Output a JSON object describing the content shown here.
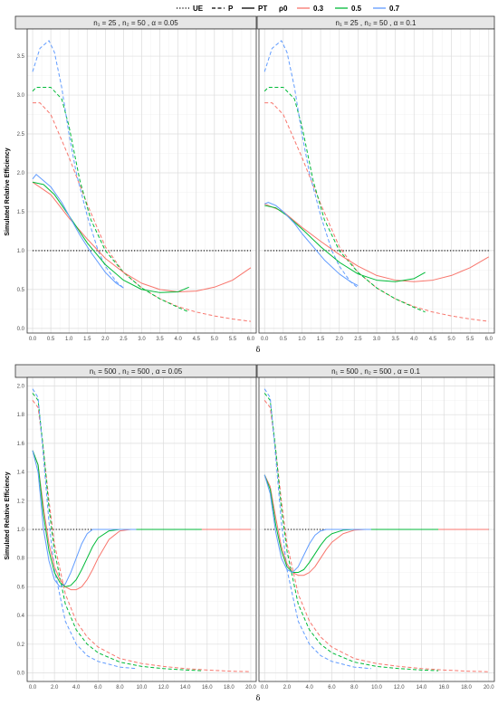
{
  "legend": {
    "linetype_items": [
      {
        "label": "UE",
        "dash": "1.2,2"
      },
      {
        "label": "P",
        "dash": "4,2.5"
      },
      {
        "label": "PT",
        "dash": ""
      }
    ],
    "rho_title": "ρ0",
    "rho_items": [
      {
        "label": "0.3",
        "color": "#F8766D"
      },
      {
        "label": "0.5",
        "color": "#00BA38"
      },
      {
        "label": "0.7",
        "color": "#619CFF"
      }
    ]
  },
  "ylabel": "Simulated Relative Efficiency",
  "xlabel": "δ",
  "chart_data": [
    {
      "type": "line",
      "title": "n₁ = 25 , n₂ = 50 , α = 0.05",
      "xlim": [
        -0.15,
        6.15
      ],
      "ylim": [
        -0.06,
        3.85
      ],
      "xticks": [
        0.0,
        0.5,
        1.0,
        1.5,
        2.0,
        2.5,
        3.0,
        3.5,
        4.0,
        4.5,
        5.0,
        5.5,
        6.0
      ],
      "xtick_labels": [
        "0.0",
        "0.5",
        "1.0",
        "1.5",
        "2.0",
        "2.5",
        "3.0",
        "3.5",
        "4.0",
        "4.5",
        "5.0",
        "5.5",
        "6.0"
      ],
      "yticks": [
        0.0,
        0.5,
        1.0,
        1.5,
        2.0,
        2.5,
        3.0,
        3.5
      ],
      "ytick_labels": [
        "0.0",
        "0.5",
        "1.0",
        "1.5",
        "2.0",
        "2.5",
        "3.0",
        "3.5"
      ],
      "series": [
        {
          "estimator": "UE",
          "rho": "all",
          "x": [
            0,
            6
          ],
          "y": [
            1.0,
            1.0
          ]
        },
        {
          "estimator": "P",
          "rho": "0.3",
          "x": [
            0,
            0.2,
            0.5,
            1.0,
            1.5,
            2.0,
            2.5,
            3.0,
            3.5,
            4.0,
            4.5,
            5.0,
            5.5,
            6.0
          ],
          "y": [
            2.9,
            2.9,
            2.75,
            2.2,
            1.6,
            1.05,
            0.72,
            0.52,
            0.38,
            0.28,
            0.21,
            0.16,
            0.12,
            0.09
          ]
        },
        {
          "estimator": "P",
          "rho": "0.5",
          "x": [
            0,
            0.1,
            0.5,
            0.8,
            1.0,
            1.3,
            1.6,
            2.0,
            2.5,
            3.0,
            3.5,
            4.0,
            4.3
          ],
          "y": [
            3.05,
            3.1,
            3.1,
            2.95,
            2.6,
            1.9,
            1.4,
            1.0,
            0.72,
            0.52,
            0.38,
            0.27,
            0.21
          ]
        },
        {
          "estimator": "P",
          "rho": "0.7",
          "x": [
            0,
            0.2,
            0.45,
            0.6,
            0.8,
            1.0,
            1.2,
            1.5,
            1.8,
            2.0,
            2.3,
            2.5
          ],
          "y": [
            3.3,
            3.6,
            3.7,
            3.55,
            3.1,
            2.5,
            2.0,
            1.45,
            1.0,
            0.8,
            0.6,
            0.52
          ]
        },
        {
          "estimator": "PT",
          "rho": "0.3",
          "x": [
            0,
            0.5,
            1.0,
            1.5,
            2.0,
            2.5,
            3.0,
            3.5,
            4.0,
            4.5,
            5.0,
            5.5,
            6.0
          ],
          "y": [
            1.88,
            1.72,
            1.42,
            1.15,
            0.9,
            0.72,
            0.58,
            0.5,
            0.47,
            0.48,
            0.53,
            0.62,
            0.78
          ]
        },
        {
          "estimator": "PT",
          "rho": "0.5",
          "x": [
            0,
            0.3,
            0.6,
            1.0,
            1.5,
            2.0,
            2.5,
            3.0,
            3.5,
            4.0,
            4.3
          ],
          "y": [
            1.88,
            1.85,
            1.72,
            1.45,
            1.1,
            0.82,
            0.62,
            0.5,
            0.46,
            0.47,
            0.53
          ]
        },
        {
          "estimator": "PT",
          "rho": "0.7",
          "x": [
            0,
            0.1,
            0.3,
            0.5,
            0.8,
            1.0,
            1.3,
            1.6,
            2.0,
            2.3,
            2.5
          ],
          "y": [
            1.92,
            1.98,
            1.9,
            1.82,
            1.62,
            1.45,
            1.2,
            0.98,
            0.72,
            0.58,
            0.52
          ]
        }
      ]
    },
    {
      "type": "line",
      "title": "n₁ = 25 , n₂ = 50 , α = 0.1",
      "xlim": [
        -0.15,
        6.15
      ],
      "ylim": [
        -0.06,
        3.85
      ],
      "xticks": [
        0.0,
        0.5,
        1.0,
        1.5,
        2.0,
        2.5,
        3.0,
        3.5,
        4.0,
        4.5,
        5.0,
        5.5,
        6.0
      ],
      "xtick_labels": [
        "0.0",
        "0.5",
        "1.0",
        "1.5",
        "2.0",
        "2.5",
        "3.0",
        "3.5",
        "4.0",
        "4.5",
        "5.0",
        "5.5",
        "6.0"
      ],
      "yticks": [
        0.0,
        0.5,
        1.0,
        1.5,
        2.0,
        2.5,
        3.0,
        3.5
      ],
      "ytick_labels": [
        "",
        "",
        "",
        "",
        "",
        "",
        "",
        ""
      ],
      "series": [
        {
          "estimator": "UE",
          "rho": "all",
          "x": [
            0,
            6
          ],
          "y": [
            1.0,
            1.0
          ]
        },
        {
          "estimator": "P",
          "rho": "0.3",
          "x": [
            0,
            0.2,
            0.5,
            1.0,
            1.5,
            2.0,
            2.5,
            3.0,
            3.5,
            4.0,
            4.5,
            5.0,
            5.5,
            6.0
          ],
          "y": [
            2.9,
            2.9,
            2.75,
            2.2,
            1.6,
            1.05,
            0.72,
            0.52,
            0.38,
            0.28,
            0.21,
            0.16,
            0.12,
            0.09
          ]
        },
        {
          "estimator": "P",
          "rho": "0.5",
          "x": [
            0,
            0.1,
            0.5,
            0.8,
            1.0,
            1.3,
            1.6,
            2.0,
            2.5,
            3.0,
            3.5,
            4.0,
            4.3
          ],
          "y": [
            3.05,
            3.1,
            3.1,
            2.95,
            2.6,
            1.9,
            1.4,
            1.0,
            0.72,
            0.52,
            0.38,
            0.27,
            0.21
          ]
        },
        {
          "estimator": "P",
          "rho": "0.7",
          "x": [
            0,
            0.2,
            0.45,
            0.6,
            0.8,
            1.0,
            1.2,
            1.5,
            1.8,
            2.0,
            2.3,
            2.5
          ],
          "y": [
            3.3,
            3.6,
            3.7,
            3.55,
            3.1,
            2.5,
            2.0,
            1.45,
            1.0,
            0.8,
            0.6,
            0.52
          ]
        },
        {
          "estimator": "PT",
          "rho": "0.3",
          "x": [
            0,
            0.5,
            1.0,
            1.5,
            2.0,
            2.5,
            3.0,
            3.5,
            4.0,
            4.5,
            5.0,
            5.5,
            6.0
          ],
          "y": [
            1.6,
            1.5,
            1.3,
            1.12,
            0.95,
            0.8,
            0.68,
            0.62,
            0.6,
            0.62,
            0.68,
            0.78,
            0.92
          ]
        },
        {
          "estimator": "PT",
          "rho": "0.5",
          "x": [
            0,
            0.3,
            0.6,
            1.0,
            1.5,
            2.0,
            2.5,
            3.0,
            3.5,
            4.0,
            4.3
          ],
          "y": [
            1.58,
            1.55,
            1.45,
            1.28,
            1.05,
            0.85,
            0.7,
            0.62,
            0.6,
            0.64,
            0.72
          ]
        },
        {
          "estimator": "PT",
          "rho": "0.7",
          "x": [
            0,
            0.1,
            0.3,
            0.5,
            0.8,
            1.0,
            1.3,
            1.6,
            2.0,
            2.3,
            2.5
          ],
          "y": [
            1.6,
            1.62,
            1.58,
            1.5,
            1.35,
            1.22,
            1.05,
            0.88,
            0.7,
            0.6,
            0.55
          ]
        }
      ]
    },
    {
      "type": "line",
      "title": "n₁ = 500 , n₂ = 500 , α = 0.05",
      "xlim": [
        -0.5,
        20.5
      ],
      "ylim": [
        -0.06,
        2.06
      ],
      "xticks": [
        0,
        2,
        4,
        6,
        8,
        10,
        12,
        14,
        16,
        18,
        20
      ],
      "xtick_labels": [
        "0.0",
        "2.0",
        "4.0",
        "6.0",
        "8.0",
        "10.0",
        "12.0",
        "14.0",
        "16.0",
        "18.0",
        "20.0"
      ],
      "yticks": [
        0.0,
        0.2,
        0.4,
        0.6,
        0.8,
        1.0,
        1.2,
        1.4,
        1.6,
        1.8,
        2.0
      ],
      "ytick_labels": [
        "0.0",
        "0.2",
        "0.4",
        "0.6",
        "0.8",
        "1.0",
        "1.2",
        "1.4",
        "1.6",
        "1.8",
        "2.0"
      ],
      "series": [
        {
          "estimator": "UE",
          "rho": "all",
          "x": [
            0,
            20
          ],
          "y": [
            1.0,
            1.0
          ]
        },
        {
          "estimator": "P",
          "rho": "0.3",
          "x": [
            0,
            0.5,
            1,
            1.5,
            2,
            3,
            4,
            5,
            6,
            8,
            10,
            12,
            14,
            16,
            18,
            20
          ],
          "y": [
            1.9,
            1.85,
            1.55,
            1.2,
            0.9,
            0.55,
            0.36,
            0.25,
            0.18,
            0.1,
            0.065,
            0.045,
            0.03,
            0.02,
            0.012,
            0.008
          ]
        },
        {
          "estimator": "P",
          "rho": "0.5",
          "x": [
            0,
            0.5,
            1,
            1.5,
            2,
            3,
            4,
            5,
            6,
            8,
            10,
            12,
            14,
            15.5
          ],
          "y": [
            1.95,
            1.9,
            1.55,
            1.15,
            0.85,
            0.48,
            0.3,
            0.2,
            0.14,
            0.075,
            0.045,
            0.03,
            0.02,
            0.015
          ]
        },
        {
          "estimator": "P",
          "rho": "0.7",
          "x": [
            0,
            0.5,
            1,
            1.5,
            2,
            3,
            4,
            5,
            6,
            8,
            9.5
          ],
          "y": [
            1.98,
            1.92,
            1.5,
            1.05,
            0.72,
            0.36,
            0.2,
            0.12,
            0.08,
            0.04,
            0.03
          ]
        },
        {
          "estimator": "PT",
          "rho": "0.3",
          "x": [
            0,
            0.5,
            1,
            1.5,
            2,
            2.5,
            3,
            3.5,
            4,
            4.5,
            5,
            5.5,
            6,
            7,
            8,
            9,
            10,
            12,
            14,
            16,
            18,
            20
          ],
          "y": [
            1.55,
            1.45,
            1.15,
            0.9,
            0.74,
            0.65,
            0.6,
            0.58,
            0.58,
            0.6,
            0.65,
            0.72,
            0.8,
            0.93,
            0.99,
            1.0,
            1.0,
            1.0,
            1.0,
            1.0,
            1.0,
            1.0
          ]
        },
        {
          "estimator": "PT",
          "rho": "0.5",
          "x": [
            0,
            0.5,
            1,
            1.5,
            2,
            2.5,
            3,
            3.5,
            4,
            4.5,
            5,
            5.5,
            6,
            7,
            8,
            9,
            10,
            12,
            14,
            15.5
          ],
          "y": [
            1.55,
            1.45,
            1.1,
            0.85,
            0.7,
            0.63,
            0.6,
            0.61,
            0.65,
            0.72,
            0.8,
            0.88,
            0.94,
            0.99,
            1.0,
            1.0,
            1.0,
            1.0,
            1.0,
            1.0
          ]
        },
        {
          "estimator": "PT",
          "rho": "0.7",
          "x": [
            0,
            0.5,
            1,
            1.5,
            2,
            2.5,
            3,
            3.5,
            4,
            4.5,
            5,
            5.5,
            6,
            7,
            8,
            9.5
          ],
          "y": [
            1.55,
            1.4,
            1.0,
            0.78,
            0.65,
            0.6,
            0.62,
            0.7,
            0.8,
            0.9,
            0.97,
            1.0,
            1.0,
            1.0,
            1.0,
            1.0
          ]
        }
      ]
    },
    {
      "type": "line",
      "title": "n₁ = 500 , n₂ = 500 , α = 0.1",
      "xlim": [
        -0.5,
        20.5
      ],
      "ylim": [
        -0.06,
        2.06
      ],
      "xticks": [
        0,
        2,
        4,
        6,
        8,
        10,
        12,
        14,
        16,
        18,
        20
      ],
      "xtick_labels": [
        "0.0",
        "2.0",
        "4.0",
        "6.0",
        "8.0",
        "10.0",
        "12.0",
        "14.0",
        "16.0",
        "18.0",
        "20.0"
      ],
      "yticks": [
        0.0,
        0.2,
        0.4,
        0.6,
        0.8,
        1.0,
        1.2,
        1.4,
        1.6,
        1.8,
        2.0
      ],
      "ytick_labels": [
        "",
        "",
        "",
        "",
        "",
        "",
        "",
        "",
        "",
        "",
        ""
      ],
      "series": [
        {
          "estimator": "UE",
          "rho": "all",
          "x": [
            0,
            20
          ],
          "y": [
            1.0,
            1.0
          ]
        },
        {
          "estimator": "P",
          "rho": "0.3",
          "x": [
            0,
            0.5,
            1,
            1.5,
            2,
            3,
            4,
            5,
            6,
            8,
            10,
            12,
            14,
            16,
            18,
            20
          ],
          "y": [
            1.9,
            1.85,
            1.55,
            1.2,
            0.9,
            0.55,
            0.36,
            0.25,
            0.18,
            0.1,
            0.065,
            0.045,
            0.03,
            0.02,
            0.012,
            0.008
          ]
        },
        {
          "estimator": "P",
          "rho": "0.5",
          "x": [
            0,
            0.5,
            1,
            1.5,
            2,
            3,
            4,
            5,
            6,
            8,
            10,
            12,
            14,
            15.5
          ],
          "y": [
            1.95,
            1.9,
            1.55,
            1.15,
            0.85,
            0.48,
            0.3,
            0.2,
            0.14,
            0.075,
            0.045,
            0.03,
            0.02,
            0.015
          ]
        },
        {
          "estimator": "P",
          "rho": "0.7",
          "x": [
            0,
            0.5,
            1,
            1.5,
            2,
            3,
            4,
            5,
            6,
            8,
            9.5
          ],
          "y": [
            1.98,
            1.92,
            1.5,
            1.05,
            0.72,
            0.36,
            0.2,
            0.12,
            0.08,
            0.04,
            0.03
          ]
        },
        {
          "estimator": "PT",
          "rho": "0.3",
          "x": [
            0,
            0.5,
            1,
            1.5,
            2,
            2.5,
            3,
            3.5,
            4,
            4.5,
            5,
            5.5,
            6,
            7,
            8,
            9,
            10,
            12,
            14,
            16,
            18,
            20
          ],
          "y": [
            1.38,
            1.3,
            1.08,
            0.88,
            0.76,
            0.7,
            0.68,
            0.68,
            0.7,
            0.74,
            0.8,
            0.86,
            0.91,
            0.97,
            0.995,
            1.0,
            1.0,
            1.0,
            1.0,
            1.0,
            1.0,
            1.0
          ]
        },
        {
          "estimator": "PT",
          "rho": "0.5",
          "x": [
            0,
            0.5,
            1,
            1.5,
            2,
            2.5,
            3,
            3.5,
            4,
            4.5,
            5,
            5.5,
            6,
            7,
            8,
            9,
            10,
            12,
            14,
            15.5
          ],
          "y": [
            1.38,
            1.28,
            1.03,
            0.85,
            0.74,
            0.7,
            0.7,
            0.72,
            0.77,
            0.83,
            0.89,
            0.94,
            0.97,
            0.995,
            1.0,
            1.0,
            1.0,
            1.0,
            1.0,
            1.0
          ]
        },
        {
          "estimator": "PT",
          "rho": "0.7",
          "x": [
            0,
            0.5,
            1,
            1.5,
            2,
            2.5,
            3,
            3.5,
            4,
            4.5,
            5,
            5.5,
            6,
            7,
            8,
            9.5
          ],
          "y": [
            1.38,
            1.25,
            0.98,
            0.8,
            0.72,
            0.7,
            0.74,
            0.82,
            0.9,
            0.96,
            0.99,
            1.0,
            1.0,
            1.0,
            1.0,
            1.0
          ]
        }
      ]
    }
  ]
}
